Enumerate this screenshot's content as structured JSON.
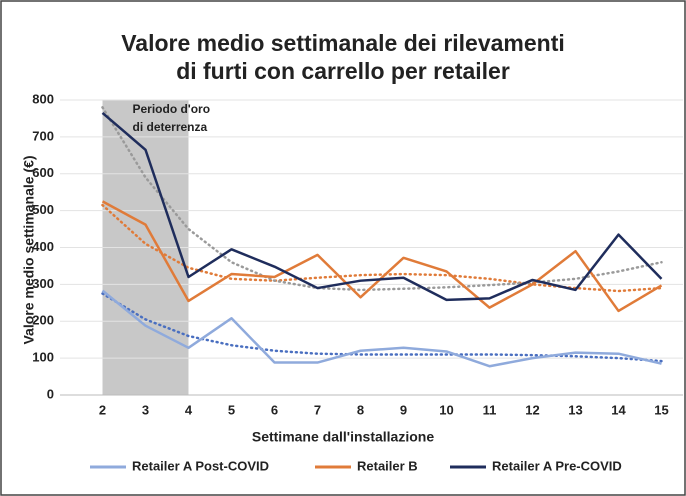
{
  "chart_data": {
    "type": "line",
    "title": [
      "Valore medio settimanale dei rilevamenti",
      "di furti con carrello per retailer"
    ],
    "x_label": "Settimane dall'installazione",
    "y_label": "Valore medio settimanale (€)",
    "x": [
      2,
      3,
      4,
      5,
      6,
      7,
      8,
      9,
      10,
      11,
      12,
      13,
      14,
      15
    ],
    "xlim": [
      1.5,
      15.5
    ],
    "xticks": [
      2,
      3,
      4,
      5,
      6,
      7,
      8,
      9,
      10,
      11,
      12,
      13,
      14,
      15
    ],
    "ylim": [
      0,
      800
    ],
    "yticks": [
      0,
      100,
      200,
      300,
      400,
      500,
      600,
      700,
      800
    ],
    "grid": true,
    "legend": "bottom",
    "annotation": {
      "text": [
        "Periodo d'oro",
        "di deterrenza"
      ],
      "x_range": [
        2,
        4
      ],
      "color": "#c8c8c8"
    },
    "series": [
      {
        "name": "Retailer A Post-COVID",
        "color": "#8faadc",
        "values": [
          283,
          188,
          128,
          208,
          88,
          88,
          120,
          128,
          118,
          78,
          100,
          115,
          112,
          85
        ],
        "trend": [
          275,
          205,
          160,
          135,
          120,
          112,
          110,
          110,
          110,
          110,
          108,
          105,
          100,
          92
        ],
        "trend_color": "#4a6fc0"
      },
      {
        "name": "Retailer B",
        "color": "#e07b39",
        "values": [
          525,
          462,
          255,
          328,
          320,
          380,
          265,
          372,
          335,
          237,
          300,
          390,
          228,
          297
        ],
        "trend": [
          515,
          410,
          345,
          315,
          310,
          318,
          325,
          328,
          325,
          315,
          300,
          290,
          282,
          290
        ],
        "trend_color": "#e07b39"
      },
      {
        "name": "Retailer A Pre-COVID",
        "color": "#1f2d5c",
        "values": [
          765,
          665,
          320,
          395,
          348,
          290,
          310,
          318,
          258,
          262,
          312,
          285,
          435,
          315
        ],
        "trend": [
          780,
          590,
          450,
          360,
          310,
          290,
          285,
          288,
          292,
          298,
          305,
          315,
          335,
          360
        ],
        "trend_color": "#9a9a9a"
      }
    ]
  }
}
